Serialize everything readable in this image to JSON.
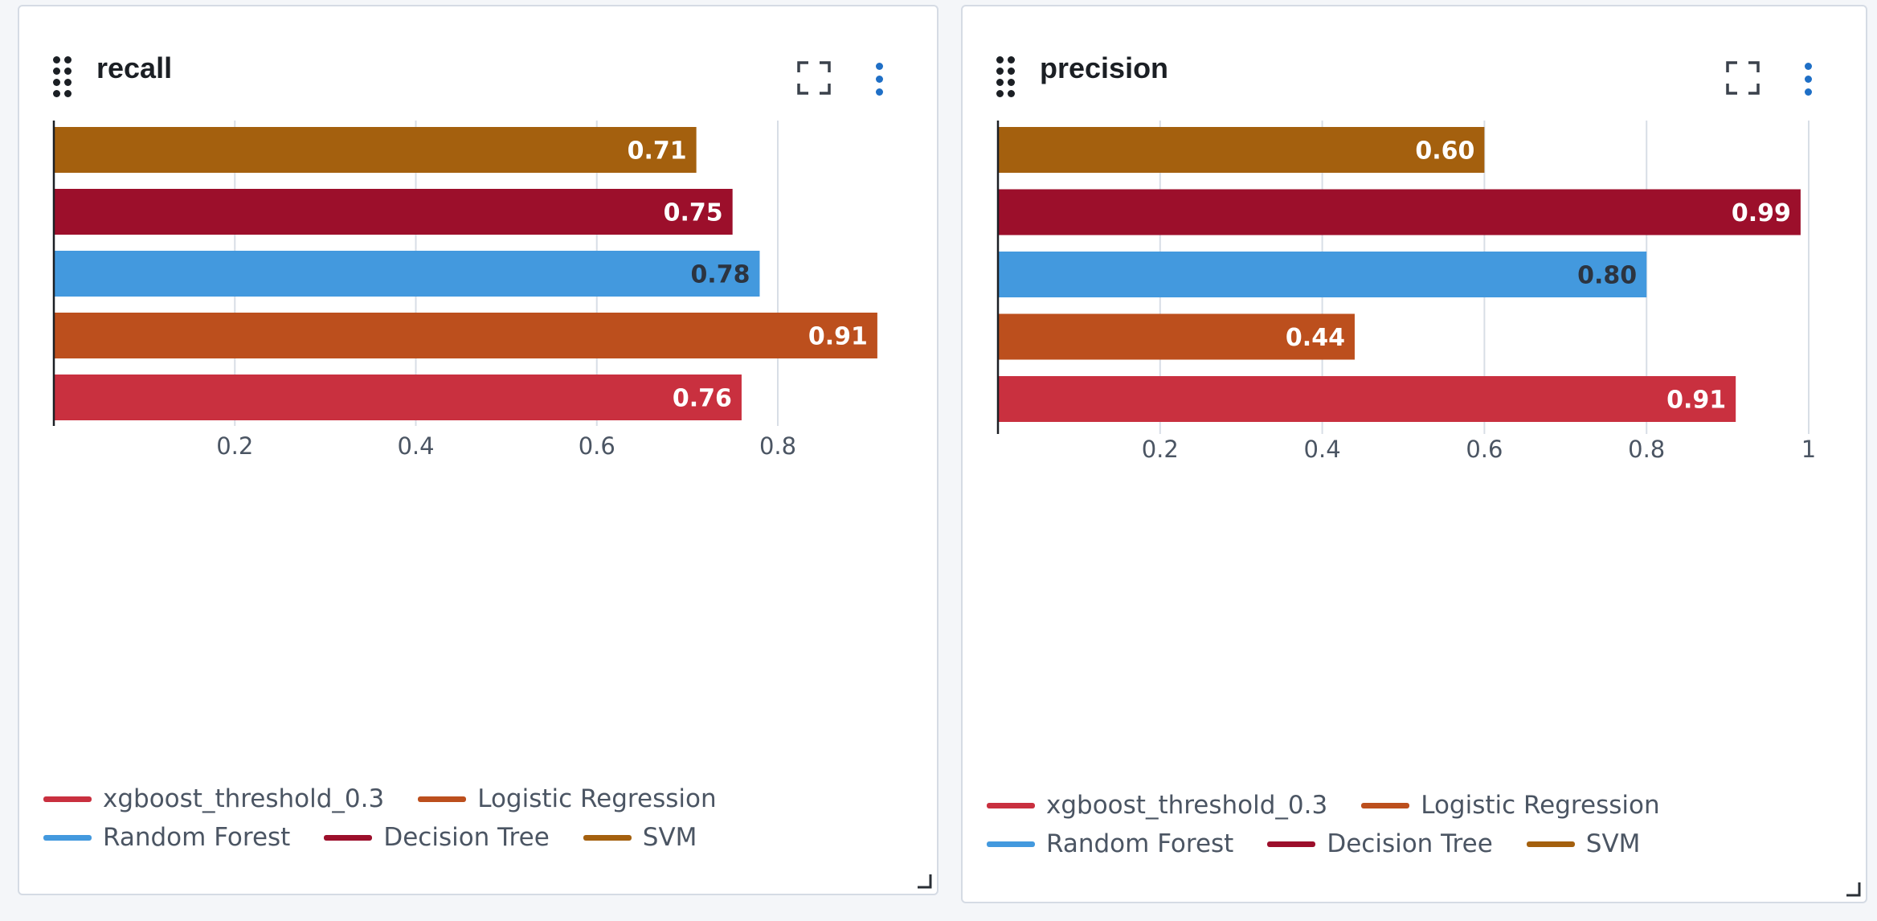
{
  "series_legend": [
    {
      "name": "xgboost_threshold_0.3",
      "color": "#c9303f"
    },
    {
      "name": "Logistic Regression",
      "color": "#bc4f1d"
    },
    {
      "name": "Random Forest",
      "color": "#4399de"
    },
    {
      "name": "Decision Tree",
      "color": "#9c0f2b"
    },
    {
      "name": "SVM",
      "color": "#a4600e"
    }
  ],
  "icons": {
    "drag": "drag-handle-icon",
    "expand": "expand-icon",
    "more": "more-vertical-icon",
    "resize": "resize-corner-icon"
  },
  "chart_data": [
    {
      "type": "bar",
      "orientation": "horizontal",
      "title": "recall",
      "categories": [
        "SVM",
        "Decision Tree",
        "Random Forest",
        "Logistic Regression",
        "xgboost_threshold_0.3"
      ],
      "values": [
        0.71,
        0.75,
        0.78,
        0.91,
        0.76
      ],
      "value_labels": [
        "0.71",
        "0.75",
        "0.78",
        "0.91",
        "0.76"
      ],
      "colors": [
        "#a4600e",
        "#9c0f2b",
        "#4399de",
        "#bc4f1d",
        "#c9303f"
      ],
      "xlim": [
        0,
        0.9
      ],
      "xticks": [
        "0.2",
        "0.4",
        "0.6",
        "0.8"
      ],
      "grid": true,
      "legend": "bottom"
    },
    {
      "type": "bar",
      "orientation": "horizontal",
      "title": "precision",
      "categories": [
        "SVM",
        "Decision Tree",
        "Random Forest",
        "Logistic Regression",
        "xgboost_threshold_0.3"
      ],
      "values": [
        0.6,
        0.99,
        0.8,
        0.44,
        0.91
      ],
      "value_labels": [
        "0.60",
        "0.99",
        "0.80",
        "0.44",
        "0.91"
      ],
      "colors": [
        "#a4600e",
        "#9c0f2b",
        "#4399de",
        "#bc4f1d",
        "#c9303f"
      ],
      "xlim": [
        0,
        1
      ],
      "xticks": [
        "0.2",
        "0.4",
        "0.6",
        "0.8",
        "1"
      ],
      "grid": true,
      "legend": "bottom"
    }
  ]
}
